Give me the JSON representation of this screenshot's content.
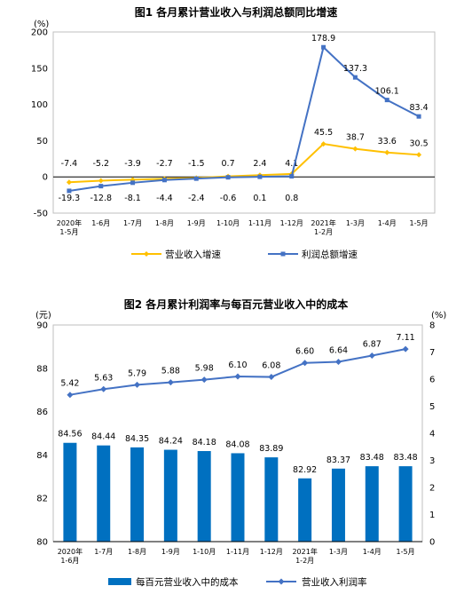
{
  "chart_data": [
    {
      "type": "line",
      "title": "图1  各月累计营业收入与利润总额同比增速",
      "y_unit": "(%)",
      "categories": [
        "2020年\n1-5月",
        "1-6月",
        "1-7月",
        "1-8月",
        "1-9月",
        "1-10月",
        "1-11月",
        "1-12月",
        "2021年\n1-2月",
        "1-3月",
        "1-4月",
        "1-5月"
      ],
      "ylim": [
        -50,
        200
      ],
      "yticks": [
        -50,
        0,
        50,
        100,
        150,
        200
      ],
      "grid": false,
      "legend_position": "bottom",
      "series": [
        {
          "name": "营业收入增速",
          "color": "#FFC000",
          "values": [
            -7.4,
            -5.2,
            -3.9,
            -2.7,
            -1.5,
            0.7,
            2.4,
            4.1,
            45.5,
            38.7,
            33.6,
            30.5
          ],
          "labels": [
            "-7.4",
            "-5.2",
            "-3.9",
            "-2.7",
            "-1.5",
            "0.7",
            "2.4",
            "4.1",
            "45.5",
            "38.7",
            "33.6",
            "30.5"
          ]
        },
        {
          "name": "利润总额增速",
          "color": "#4472C4",
          "values": [
            -19.3,
            -12.8,
            -8.1,
            -4.4,
            -2.4,
            -0.6,
            0.1,
            0.8,
            178.9,
            137.3,
            106.1,
            83.4
          ],
          "labels": [
            "-19.3",
            "-12.8",
            "-8.1",
            "-4.4",
            "-2.4",
            "-0.6",
            "0.1",
            "0.8",
            "178.9",
            "137.3",
            "106.1",
            "83.4"
          ]
        }
      ]
    },
    {
      "type": "bar",
      "title": "图2  各月累计利润率与每百元营业收入中的成本",
      "y_unit_left": "(元)",
      "y_unit_right": "(%)",
      "categories": [
        "2020年\n1-6月",
        "1-7月",
        "1-8月",
        "1-9月",
        "1-10月",
        "1-11月",
        "1-12月",
        "2021年\n1-2月",
        "1-3月",
        "1-4月",
        "1-5月"
      ],
      "ylim": [
        80,
        90
      ],
      "yticks": [
        80,
        82,
        84,
        86,
        88,
        90
      ],
      "y2lim": [
        0,
        8
      ],
      "y2ticks": [
        0,
        1,
        2,
        3,
        4,
        5,
        6,
        7,
        8
      ],
      "grid": false,
      "legend_position": "bottom",
      "series": [
        {
          "name": "每百元营业收入中的成本",
          "type": "bar",
          "axis": "left",
          "color": "#0070C0",
          "values": [
            84.56,
            84.44,
            84.35,
            84.24,
            84.18,
            84.08,
            83.89,
            82.92,
            83.37,
            83.48,
            83.48
          ],
          "labels": [
            "84.56",
            "84.44",
            "84.35",
            "84.24",
            "84.18",
            "84.08",
            "83.89",
            "82.92",
            "83.37",
            "83.48",
            "83.48"
          ]
        },
        {
          "name": "营业收入利润率",
          "type": "line",
          "axis": "right",
          "color": "#4472C4",
          "values": [
            5.42,
            5.63,
            5.79,
            5.88,
            5.98,
            6.1,
            6.08,
            6.6,
            6.64,
            6.87,
            7.11
          ],
          "labels": [
            "5.42",
            "5.63",
            "5.79",
            "5.88",
            "5.98",
            "6.10",
            "6.08",
            "6.60",
            "6.64",
            "6.87",
            "7.11"
          ]
        }
      ]
    }
  ]
}
